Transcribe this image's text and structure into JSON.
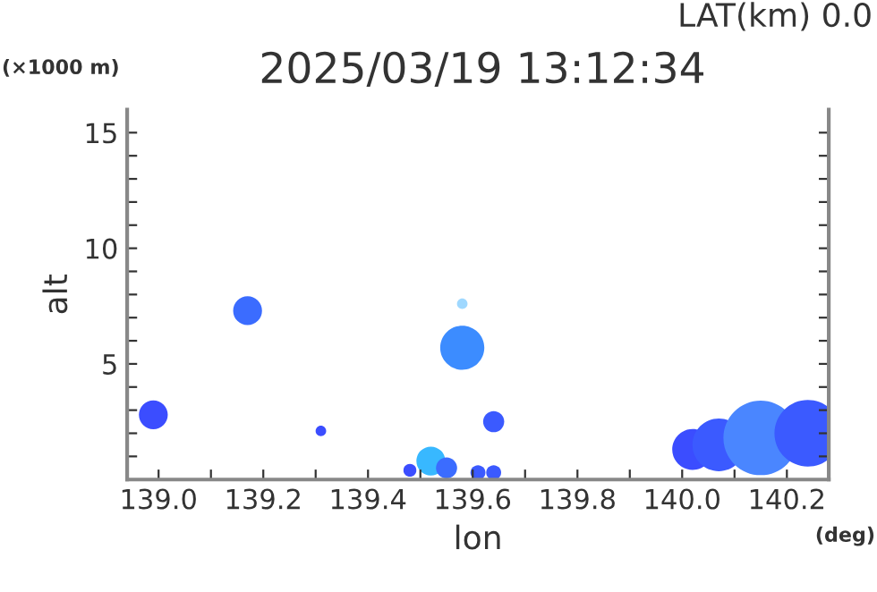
{
  "chart_data": {
    "type": "bubble",
    "title": "2025/03/19 13:12:34",
    "subtitle": "LAT(km) 0.0",
    "xlabel": "lon",
    "ylabel": "alt",
    "annotations": [
      "(×1000 m)",
      "(deg)"
    ],
    "xlim": [
      138.94,
      140.28
    ],
    "ylim": [
      0,
      16
    ],
    "xticks": [
      {
        "value": 139.0,
        "label": "139.0"
      },
      {
        "value": 139.1,
        "label": null
      },
      {
        "value": 139.2,
        "label": "139.2"
      },
      {
        "value": 139.3,
        "label": null
      },
      {
        "value": 139.4,
        "label": "139.4"
      },
      {
        "value": 139.5,
        "label": null
      },
      {
        "value": 139.6,
        "label": "139.6"
      },
      {
        "value": 139.7,
        "label": null
      },
      {
        "value": 139.8,
        "label": "139.8"
      },
      {
        "value": 139.9,
        "label": null
      },
      {
        "value": 140.0,
        "label": "140.0"
      },
      {
        "value": 140.1,
        "label": null
      },
      {
        "value": 140.2,
        "label": "140.2"
      }
    ],
    "yticks": [
      {
        "value": 1,
        "label": null
      },
      {
        "value": 2,
        "label": null
      },
      {
        "value": 3,
        "label": null
      },
      {
        "value": 4,
        "label": null
      },
      5,
      {
        "value": 6,
        "label": null
      },
      {
        "value": 7,
        "label": null
      },
      {
        "value": 8,
        "label": null
      },
      {
        "value": 9,
        "label": null
      },
      10,
      {
        "value": 11,
        "label": null
      },
      {
        "value": 12,
        "label": null
      },
      {
        "value": 13,
        "label": null
      },
      {
        "value": 14,
        "label": null
      },
      15
    ],
    "grid": false,
    "legend": false,
    "x": [
      138.99,
      139.17,
      139.31,
      139.58,
      139.58,
      139.64,
      139.48,
      139.52,
      139.55,
      139.61,
      139.64,
      140.02,
      140.07,
      140.15,
      140.24
    ],
    "values": [
      2.8,
      7.3,
      2.1,
      5.7,
      7.6,
      2.5,
      0.4,
      0.8,
      0.5,
      0.3,
      0.3,
      1.3,
      1.5,
      1.8,
      2.0
    ],
    "sizes": [
      0.15,
      0.15,
      0.02,
      0.35,
      0.02,
      0.08,
      0.03,
      0.15,
      0.08,
      0.04,
      0.04,
      0.3,
      0.5,
      1.0,
      0.8
    ],
    "colors": [
      "#3b4dff",
      "#3b6cff",
      "#3b4dff",
      "#3c8cff",
      "#9fd8ff",
      "#3b5aff",
      "#3b4dff",
      "#38b8ff",
      "#3b6cff",
      "#3b5aff",
      "#3b5aff",
      "#3b4dff",
      "#3b5aff",
      "#4a86ff",
      "#3b5aff"
    ]
  }
}
